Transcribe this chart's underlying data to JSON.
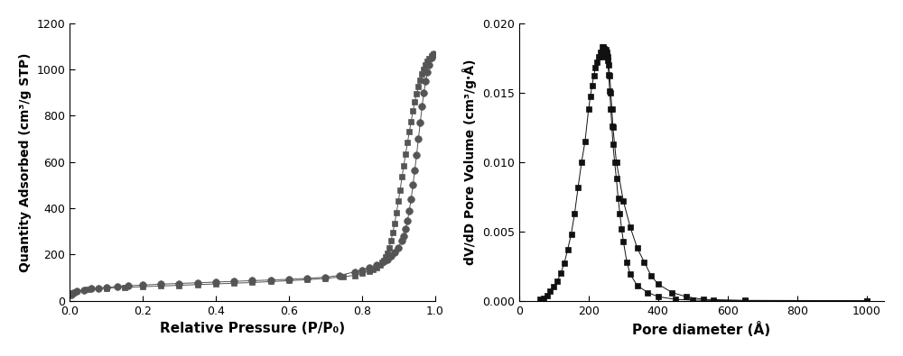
{
  "left_plot": {
    "xlabel": "Relative Pressure (P/P₀)",
    "ylabel": "Quantity Adsorbed (cm³/g STP)",
    "xlim": [
      0.0,
      1.0
    ],
    "ylim": [
      0,
      1200
    ],
    "yticks": [
      0,
      200,
      400,
      600,
      800,
      1000,
      1200
    ],
    "xticks": [
      0.0,
      0.2,
      0.4,
      0.6,
      0.8,
      1.0
    ],
    "marker_color": "#555555",
    "line_color": "#888888",
    "adsorption_x": [
      0.005,
      0.01,
      0.02,
      0.04,
      0.06,
      0.08,
      0.1,
      0.13,
      0.16,
      0.2,
      0.25,
      0.3,
      0.35,
      0.4,
      0.45,
      0.5,
      0.55,
      0.6,
      0.65,
      0.7,
      0.74,
      0.78,
      0.8,
      0.82,
      0.84,
      0.86,
      0.87,
      0.88,
      0.89,
      0.9,
      0.91,
      0.915,
      0.92,
      0.925,
      0.93,
      0.935,
      0.94,
      0.945,
      0.95,
      0.955,
      0.96,
      0.965,
      0.97,
      0.975,
      0.98,
      0.985,
      0.99,
      0.995
    ],
    "adsorption_y": [
      27,
      33,
      40,
      47,
      52,
      55,
      58,
      62,
      65,
      68,
      72,
      75,
      78,
      81,
      84,
      87,
      90,
      93,
      97,
      102,
      110,
      125,
      132,
      142,
      155,
      170,
      180,
      193,
      210,
      230,
      260,
      280,
      310,
      345,
      390,
      440,
      500,
      565,
      630,
      700,
      770,
      840,
      900,
      950,
      990,
      1020,
      1050,
      1065
    ],
    "desorption_x": [
      0.995,
      0.99,
      0.985,
      0.98,
      0.975,
      0.97,
      0.965,
      0.96,
      0.955,
      0.95,
      0.945,
      0.94,
      0.935,
      0.93,
      0.925,
      0.92,
      0.915,
      0.91,
      0.905,
      0.9,
      0.895,
      0.89,
      0.885,
      0.88,
      0.875,
      0.87,
      0.865,
      0.86,
      0.855,
      0.85,
      0.84,
      0.83,
      0.82,
      0.8,
      0.78,
      0.75,
      0.7,
      0.65,
      0.6,
      0.55,
      0.5,
      0.45,
      0.4,
      0.35,
      0.3,
      0.25,
      0.2,
      0.15,
      0.1,
      0.05,
      0.01
    ],
    "desorption_y": [
      1065,
      1060,
      1048,
      1035,
      1020,
      1000,
      980,
      955,
      925,
      895,
      860,
      820,
      775,
      730,
      683,
      635,
      585,
      535,
      480,
      430,
      380,
      335,
      295,
      260,
      230,
      207,
      190,
      176,
      165,
      156,
      145,
      135,
      128,
      118,
      110,
      104,
      97,
      91,
      87,
      83,
      79,
      76,
      73,
      70,
      67,
      64,
      61,
      58,
      55,
      48,
      36
    ]
  },
  "right_plot": {
    "xlabel": "Pore diameter (Å)",
    "ylabel": "dV/dD Pore Volume (cm³/g·Å)",
    "xlim": [
      0,
      1050
    ],
    "ylim": [
      0.0,
      0.02
    ],
    "yticks": [
      0.0,
      0.005,
      0.01,
      0.015,
      0.02
    ],
    "xticks": [
      0,
      200,
      400,
      600,
      800,
      1000
    ],
    "marker_color": "#111111",
    "line_color": "#888888",
    "ads_x": [
      60,
      70,
      80,
      90,
      100,
      110,
      120,
      130,
      140,
      150,
      160,
      170,
      180,
      190,
      200,
      205,
      210,
      215,
      220,
      225,
      230,
      235,
      240,
      243,
      246,
      249,
      252,
      255,
      258,
      261,
      264,
      267,
      270,
      280,
      300,
      320,
      340,
      360,
      380,
      400,
      440,
      480,
      530,
      650,
      1000
    ],
    "ads_y": [
      0.0001,
      0.0002,
      0.0004,
      0.0007,
      0.001,
      0.0014,
      0.002,
      0.0027,
      0.0037,
      0.0048,
      0.0063,
      0.0082,
      0.01,
      0.0115,
      0.0138,
      0.0147,
      0.0155,
      0.0162,
      0.0168,
      0.0172,
      0.0176,
      0.0179,
      0.0183,
      0.0183,
      0.0182,
      0.0181,
      0.0179,
      0.0176,
      0.017,
      0.0162,
      0.015,
      0.0138,
      0.0125,
      0.01,
      0.0072,
      0.0053,
      0.0038,
      0.0028,
      0.0018,
      0.0012,
      0.0006,
      0.0003,
      0.0001,
      3e-05,
      1e-05
    ],
    "des_x": [
      240,
      243,
      246,
      249,
      252,
      255,
      258,
      261,
      264,
      267,
      270,
      275,
      280,
      285,
      290,
      295,
      300,
      310,
      320,
      340,
      370,
      400,
      450,
      500,
      560,
      650,
      1000
    ],
    "des_y": [
      0.0176,
      0.0177,
      0.0178,
      0.0178,
      0.0177,
      0.0173,
      0.0163,
      0.0151,
      0.0138,
      0.0126,
      0.0113,
      0.01,
      0.0088,
      0.0074,
      0.0063,
      0.0052,
      0.0043,
      0.0028,
      0.0019,
      0.0011,
      0.0006,
      0.0003,
      0.0001,
      5e-05,
      2e-05,
      1e-05,
      0.0
    ]
  }
}
